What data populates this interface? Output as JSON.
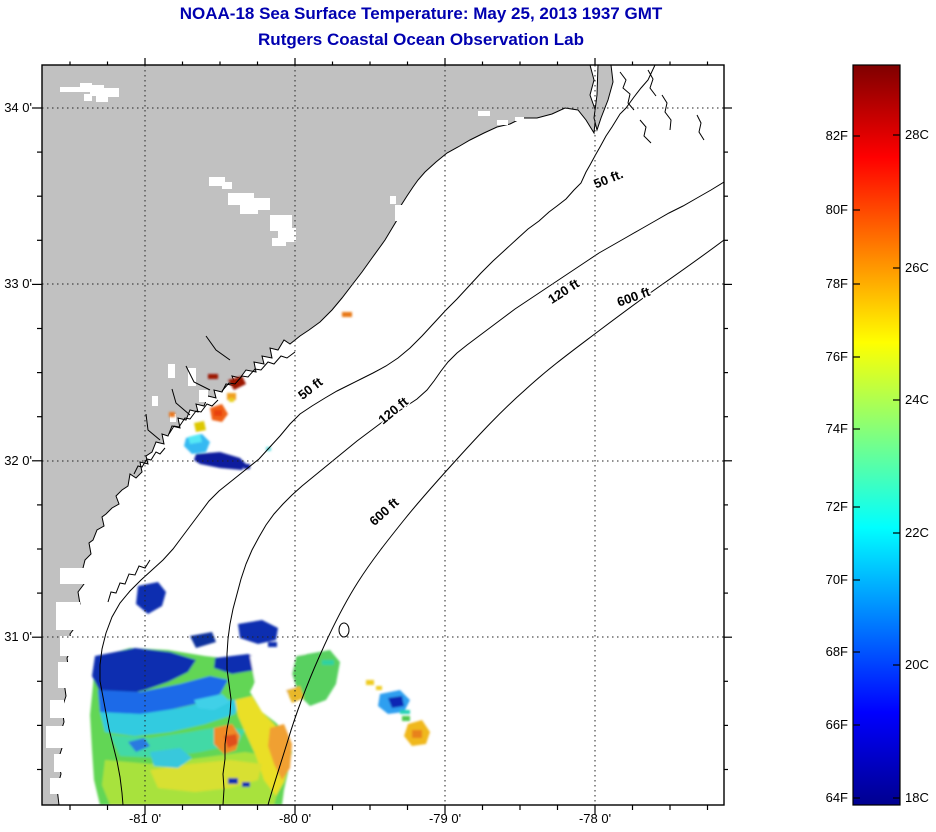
{
  "figure": {
    "title_line1": "NOAA-18 Sea Surface Temperature:  May 25, 2013 1937 GMT",
    "title_line2": "Rutgers Coastal Ocean Observation Lab",
    "title_color": "#0000B0"
  },
  "axes": {
    "x_tick_labels": [
      "-81 0'",
      "-80 0'",
      "-79 0'",
      "-78 0'"
    ],
    "y_tick_labels": [
      "34 0'",
      "33 0'",
      "32 0'",
      "31 0'"
    ]
  },
  "contours": {
    "label_50_upper": "50 ft.",
    "label_120_upper": "120 ft",
    "label_600_upper": "600 ft",
    "label_50_mid": "50 ft",
    "label_120_mid": "120 ft",
    "label_600_mid": "600 ft"
  },
  "colorbar": {
    "fahrenheit_labels": [
      "82F",
      "80F",
      "78F",
      "76F",
      "74F",
      "72F",
      "70F",
      "68F",
      "66F",
      "64F"
    ],
    "celsius_labels": [
      "28C",
      "26C",
      "24C",
      "22C",
      "20C",
      "18C"
    ]
  },
  "map_colors": {
    "land": "#C1C1C1",
    "ocean_no_data": "#FFFFFF",
    "cloud": "#FFFFFF",
    "coast_line": "#000000"
  },
  "chart_data": {
    "type": "heatmap",
    "title": "NOAA-18 Sea Surface Temperature: May 25, 2013 1937 GMT",
    "subtitle": "Rutgers Coastal Ocean Observation Lab",
    "x_axis": {
      "tick_labels": [
        "-81 0'",
        "-80 0'",
        "-79 0'",
        "-78 0'"
      ],
      "approx_range_deg_lon": [
        -81.7,
        -77.15
      ]
    },
    "y_axis": {
      "tick_labels": [
        "34 0'",
        "33 0'",
        "32 0'",
        "31 0'"
      ],
      "approx_range_deg_lat": [
        30.05,
        34.25
      ]
    },
    "grid": "dotted at whole degrees",
    "colorbar_scale": {
      "colormap": "jet",
      "min_F": 64,
      "max_F": 84,
      "min_C": 18,
      "max_C": 29,
      "f_ticks": [
        82,
        80,
        78,
        76,
        74,
        72,
        70,
        68,
        66,
        64
      ],
      "c_ticks": [
        28,
        26,
        24,
        22,
        20,
        18
      ]
    },
    "depth_contours_ft": [
      50,
      120,
      600
    ],
    "legend_position": "right colorbar",
    "sst_regions": [
      {
        "name": "main-nearshore-plume",
        "approx_lon": [
          -81.05,
          -79.7
        ],
        "approx_lat": [
          30.05,
          30.95
        ],
        "approx_temp_F": [
          66,
          79
        ],
        "description": "mottled field: navy 66-68F at north edge, cyan 70-71F, green 74-75F, yellow 76-77F, orange spots 78-79F"
      },
      {
        "name": "navy-patches-north-of-plume",
        "approx_lon": [
          -80.95,
          -80.25
        ],
        "approx_lat": [
          30.95,
          31.3
        ],
        "approx_temp_F": [
          65,
          67
        ]
      },
      {
        "name": "charleston-inlet-patches",
        "approx_lon": [
          -80.75,
          -80.35
        ],
        "approx_lat": [
          31.95,
          32.45
        ],
        "approx_temp_F": [
          64,
          83
        ],
        "description": "small dark-red 82-83F, orange 78-79F, yellow 76F, cyan 70-71F and navy 64-66F specks near shore"
      },
      {
        "name": "offshore-small-cluster",
        "approx_lon": [
          -79.45,
          -79.2
        ],
        "approx_lat": [
          30.35,
          30.65
        ],
        "approx_temp_F": [
          66,
          77
        ],
        "description": "azure/navy blob with teal, green and yellow-gold specks"
      },
      {
        "name": "coastal-orange-dot-north",
        "approx_lon": [
          -79.7,
          -79.65
        ],
        "approx_lat": [
          32.85,
          32.9
        ],
        "approx_temp_F": [
          78,
          79
        ]
      }
    ]
  }
}
